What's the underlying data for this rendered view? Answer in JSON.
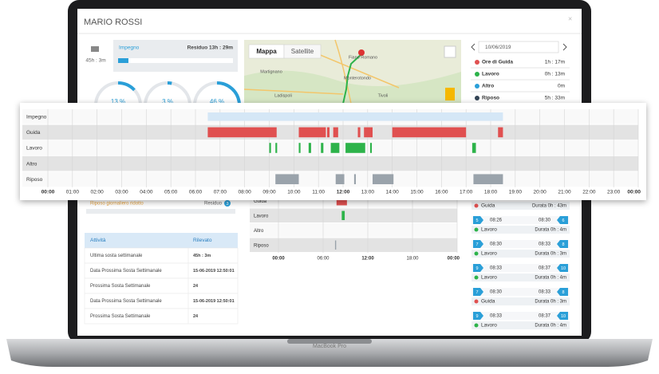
{
  "header": {
    "title": "MARIO ROSSI"
  },
  "summary": {
    "total": "45h : 3m",
    "impegno_label": "Impegno",
    "residuo": "Residuo 13h : 29m",
    "progress": 9
  },
  "gauges": [
    {
      "label": "13 %",
      "value": 13
    },
    {
      "label": "3 %",
      "value": 3
    },
    {
      "label": "46 %",
      "value": 46
    }
  ],
  "map": {
    "tabs": [
      "Mappa",
      "Satellite"
    ],
    "places": [
      "Fiano Romano",
      "Monterotondo",
      "Tivoli",
      "Martignano",
      "Ladispoli"
    ]
  },
  "day_panel": {
    "date": "10/06/2019",
    "items": [
      {
        "label": "Ore di Guida",
        "value": "1h : 17m"
      },
      {
        "label": "Lavoro",
        "value": "0h : 13m"
      },
      {
        "label": "Altro",
        "value": "0m"
      },
      {
        "label": "Riposo",
        "value": "5h : 33m"
      }
    ]
  },
  "timeline": {
    "xlim": [
      0,
      24
    ],
    "xticks": [
      {
        "value": 0,
        "label": "00:00"
      },
      {
        "value": 1,
        "label": "01:00"
      },
      {
        "value": 2,
        "label": "02:00"
      },
      {
        "value": 3,
        "label": "03:00"
      },
      {
        "value": 4,
        "label": "04:00"
      },
      {
        "value": 5,
        "label": "05:00"
      },
      {
        "value": 6,
        "label": "06:00"
      },
      {
        "value": 7,
        "label": "07:00"
      },
      {
        "value": 8,
        "label": "08:00"
      },
      {
        "value": 9,
        "label": "09:00"
      },
      {
        "value": 10,
        "label": "10:00"
      },
      {
        "value": 11,
        "label": "11:00"
      },
      {
        "value": 12,
        "label": "12:00"
      },
      {
        "value": 13,
        "label": "13:00"
      },
      {
        "value": 14,
        "label": "14:00"
      },
      {
        "value": 15,
        "label": "15:00"
      },
      {
        "value": 16,
        "label": "16:00"
      },
      {
        "value": 17,
        "label": "17:00"
      },
      {
        "value": 18,
        "label": "18:00"
      },
      {
        "value": 19,
        "label": "19:00"
      },
      {
        "value": 20,
        "label": "20:00"
      },
      {
        "value": 21,
        "label": "21:00"
      },
      {
        "value": 22,
        "label": "22:00"
      },
      {
        "value": 23,
        "label": "23:00"
      },
      {
        "value": 24,
        "label": "00:00"
      }
    ],
    "rows": [
      {
        "label": "Impegno",
        "color": "#d5e7f6",
        "segments": [
          [
            6.5,
            18.5
          ]
        ]
      },
      {
        "label": "Guida",
        "color": "#e05050",
        "segments": [
          [
            6.5,
            9.3
          ],
          [
            10.2,
            11.3
          ],
          [
            11.35,
            11.45
          ],
          [
            11.6,
            11.8
          ],
          [
            12.6,
            12.7
          ],
          [
            12.85,
            13.2
          ],
          [
            14.0,
            17.0
          ],
          [
            18.3,
            18.5
          ]
        ]
      },
      {
        "label": "Lavoro",
        "color": "#2db34a",
        "segments": [
          [
            9.0,
            9.07
          ],
          [
            9.25,
            9.32
          ],
          [
            10.2,
            10.27
          ],
          [
            10.6,
            10.7
          ],
          [
            11.1,
            11.2
          ],
          [
            11.5,
            11.85
          ],
          [
            12.1,
            12.9
          ],
          [
            13.1,
            13.17
          ],
          [
            17.25,
            17.4
          ]
        ]
      },
      {
        "label": "Altro",
        "color": "#2a9fd8",
        "segments": []
      },
      {
        "label": "Riposo",
        "color": "#9aa3ab",
        "segments": [
          [
            9.25,
            10.2
          ],
          [
            11.7,
            12.05
          ],
          [
            12.45,
            12.52
          ],
          [
            13.2,
            14.05
          ],
          [
            17.3,
            18.5
          ]
        ]
      }
    ]
  },
  "rest": {
    "label": "Riposo giornaliero ridotto",
    "residuo": "Residuo",
    "badge": "3"
  },
  "table": {
    "columns": [
      "Attività",
      "Rilevato"
    ],
    "rows": [
      [
        "Ultima sosta settimanale",
        "45h : 3m"
      ],
      [
        "Data Prossima Sosta Settimanale",
        "15-06-2019 12:50:01"
      ],
      [
        "Prossima Sosta Settimanale",
        "24"
      ],
      [
        "Data Prossima Sosta Settimanale",
        "15-06-2019 12:50:01"
      ],
      [
        "Prossima Sosta Settimanale",
        "24"
      ]
    ]
  },
  "mini_timeline": {
    "xlim": [
      0,
      24
    ],
    "xticks": [
      {
        "value": 0,
        "label": "00:00"
      },
      {
        "value": 6,
        "label": "06:00"
      },
      {
        "value": 12,
        "label": "12:00"
      },
      {
        "value": 18,
        "label": "18:00"
      },
      {
        "value": 24,
        "label": "00:00"
      }
    ],
    "rows": [
      {
        "label": "Guida",
        "color": "#e05050",
        "segments": [
          [
            7.8,
            9.2
          ]
        ]
      },
      {
        "label": "Lavoro",
        "color": "#2db34a",
        "segments": [
          [
            8.5,
            8.9
          ]
        ]
      },
      {
        "label": "Altro",
        "color": "#2a9fd8",
        "segments": []
      },
      {
        "label": "Riposo",
        "color": "#9aa3ab",
        "segments": [
          [
            7.6,
            7.75
          ]
        ]
      }
    ]
  },
  "events": {
    "first": {
      "activity": "Guida",
      "duration": "Durata 0h : 43m"
    },
    "items": [
      {
        "from_id": "5",
        "from": "08:26",
        "to": "08:30",
        "to_id": "6",
        "activity": "Lavoro",
        "duration": "Durata 0h : 4m"
      },
      {
        "from_id": "7",
        "from": "08:30",
        "to": "08:33",
        "to_id": "8",
        "activity": "Lavoro",
        "duration": "Durata 0h : 3m"
      },
      {
        "from_id": "9",
        "from": "08:33",
        "to": "08:37",
        "to_id": "10",
        "activity": "Lavoro",
        "duration": "Durata 0h : 4m"
      },
      {
        "from_id": "7",
        "from": "08:30",
        "to": "08:33",
        "to_id": "8",
        "activity": "Guida",
        "duration": "Durata 0h : 3m"
      },
      {
        "from_id": "9",
        "from": "08:33",
        "to": "08:37",
        "to_id": "10",
        "activity": "Lavoro",
        "duration": "Durata 0h : 4m"
      }
    ]
  },
  "device": "MacBook Pro"
}
